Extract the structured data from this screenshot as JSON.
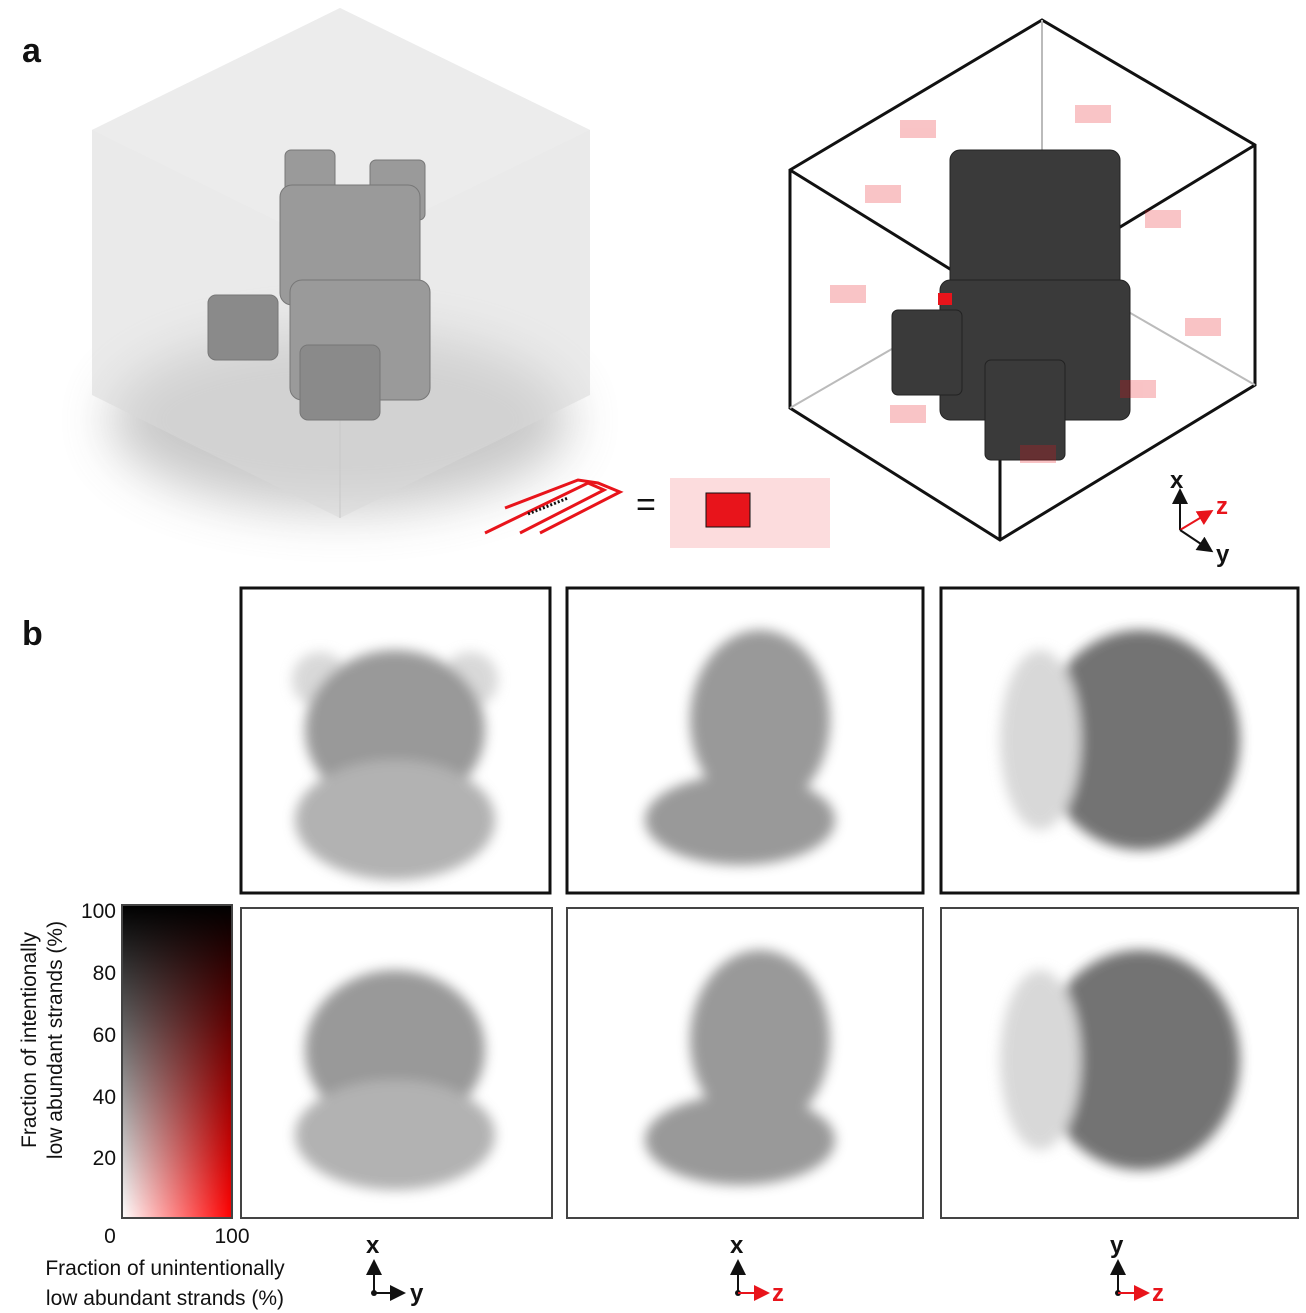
{
  "panel_a": {
    "label": "a",
    "equals": "=",
    "axes": {
      "up": "x",
      "depth": "z",
      "right": "y"
    }
  },
  "panel_b": {
    "label": "b",
    "colorbar": {
      "y_label": [
        "Fraction of intentionally",
        "low abundant strands (%)"
      ],
      "y_ticks": [
        100,
        80,
        60,
        40,
        20
      ],
      "x_label": [
        "Fraction of unintentionally",
        "low abundant strands (%)"
      ],
      "x_ticks": [
        0,
        100
      ]
    },
    "views": [
      {
        "up": "x",
        "right": "y"
      },
      {
        "up": "x",
        "right": "z"
      },
      {
        "up": "y",
        "right": "z"
      }
    ]
  }
}
